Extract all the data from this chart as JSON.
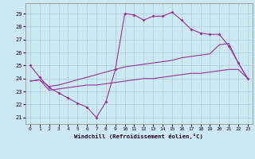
{
  "xlabel": "Windchill (Refroidissement éolien,°C)",
  "bg_color": "#cce8f0",
  "grid_color": "#aaccdd",
  "line_color": "#993399",
  "x_ticks": [
    0,
    1,
    2,
    3,
    4,
    5,
    6,
    7,
    8,
    9,
    10,
    11,
    12,
    13,
    14,
    15,
    16,
    17,
    18,
    19,
    20,
    21,
    22,
    23
  ],
  "ylim": [
    20.5,
    29.8
  ],
  "xlim": [
    -0.5,
    23.5
  ],
  "yticks": [
    21,
    22,
    23,
    24,
    25,
    26,
    27,
    28,
    29
  ],
  "line1_x": [
    0,
    1,
    2,
    3,
    4,
    5,
    6,
    7,
    8,
    9,
    10,
    11,
    12,
    13,
    14,
    15,
    16,
    17,
    18,
    19,
    20,
    21,
    22,
    23
  ],
  "line1_y": [
    25.0,
    24.1,
    23.3,
    22.9,
    22.5,
    22.1,
    21.8,
    21.0,
    22.2,
    24.7,
    29.0,
    28.9,
    28.5,
    28.8,
    28.8,
    29.1,
    28.5,
    27.8,
    27.5,
    27.4,
    27.4,
    26.5,
    25.2,
    24.0
  ],
  "line2_x": [
    0,
    1,
    2,
    3,
    4,
    5,
    6,
    7,
    8,
    9,
    10,
    11,
    12,
    13,
    14,
    15,
    16,
    17,
    18,
    19,
    20,
    21,
    22,
    23
  ],
  "line2_y": [
    23.8,
    23.9,
    23.1,
    23.2,
    23.3,
    23.4,
    23.5,
    23.5,
    23.6,
    23.7,
    23.8,
    23.9,
    24.0,
    24.0,
    24.1,
    24.2,
    24.3,
    24.4,
    24.4,
    24.5,
    24.6,
    24.7,
    24.7,
    24.0
  ],
  "line3_x": [
    0,
    1,
    2,
    3,
    4,
    5,
    6,
    7,
    8,
    9,
    10,
    11,
    12,
    13,
    14,
    15,
    16,
    17,
    18,
    19,
    20,
    21,
    22,
    23
  ],
  "line3_y": [
    23.8,
    23.9,
    23.4,
    23.5,
    23.7,
    23.9,
    24.1,
    24.3,
    24.5,
    24.7,
    24.9,
    25.0,
    25.1,
    25.2,
    25.3,
    25.4,
    25.6,
    25.7,
    25.8,
    25.9,
    26.6,
    26.7,
    25.2,
    24.0
  ]
}
